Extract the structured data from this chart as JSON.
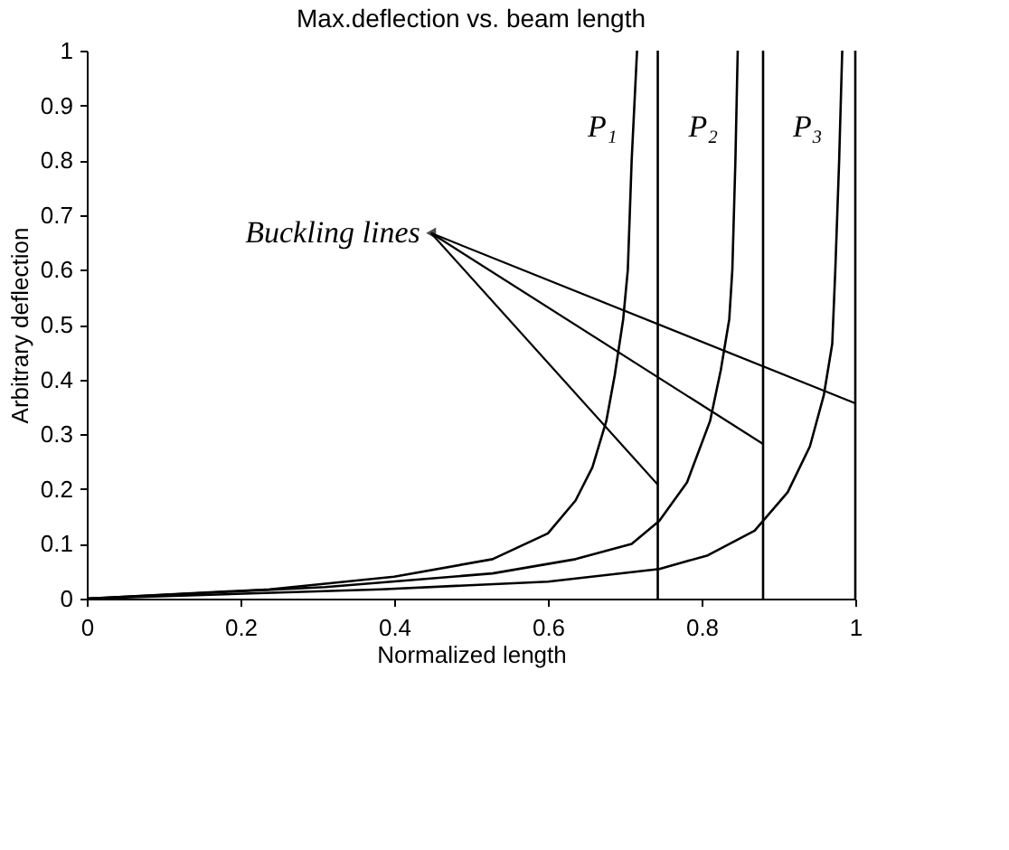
{
  "chart_data": {
    "type": "line",
    "title": "Max.deflection vs. beam length",
    "xlabel": "Normalized length",
    "ylabel": "Arbitrary deflection",
    "xlim": [
      0,
      1
    ],
    "ylim": [
      0,
      1
    ],
    "xticks": [
      0,
      0.2,
      0.4,
      0.6,
      0.8,
      1
    ],
    "yticks": [
      0,
      0.1,
      0.2,
      0.3,
      0.4,
      0.5,
      0.6,
      0.7,
      0.8,
      0.9,
      1
    ],
    "grid": false,
    "legend": false,
    "marker": "none",
    "line_style": "solid",
    "series": [
      {
        "name": "P₁",
        "color": "#000000",
        "x": [
          0,
          0.238,
          0.4,
          0.528,
          0.6,
          0.636,
          0.658,
          0.676,
          0.687,
          0.698,
          0.704,
          0.709,
          0.716
        ],
        "values": [
          0,
          0.017,
          0.04,
          0.072,
          0.119,
          0.179,
          0.24,
          0.324,
          0.408,
          0.51,
          0.6,
          0.8,
          1
        ]
      },
      {
        "name": "P₂",
        "color": "#000000",
        "x": [
          0,
          0.31,
          0.528,
          0.636,
          0.709,
          0.745,
          0.781,
          0.811,
          0.825,
          0.836,
          0.84,
          0.844,
          0.847
        ],
        "values": [
          0,
          0.021,
          0.046,
          0.072,
          0.1,
          0.142,
          0.212,
          0.324,
          0.417,
          0.51,
          0.6,
          0.8,
          1
        ]
      },
      {
        "name": "P₃",
        "color": "#000000",
        "x": [
          0,
          0.383,
          0.6,
          0.745,
          0.808,
          0.869,
          0.912,
          0.941,
          0.959,
          0.97,
          0.974,
          0.979,
          0.983
        ],
        "values": [
          0,
          0.017,
          0.031,
          0.054,
          0.079,
          0.124,
          0.194,
          0.278,
          0.371,
          0.465,
          0.6,
          0.8,
          1
        ]
      }
    ],
    "ref_lines": [
      {
        "axis": "x",
        "value": 0.743,
        "color": "#000000"
      },
      {
        "axis": "x",
        "value": 0.88,
        "color": "#000000"
      },
      {
        "axis": "x",
        "value": 1,
        "color": "#000000"
      }
    ],
    "annotations": [
      {
        "text": "Buckling lines",
        "x": 0.448,
        "y": 0.667
      }
    ]
  }
}
